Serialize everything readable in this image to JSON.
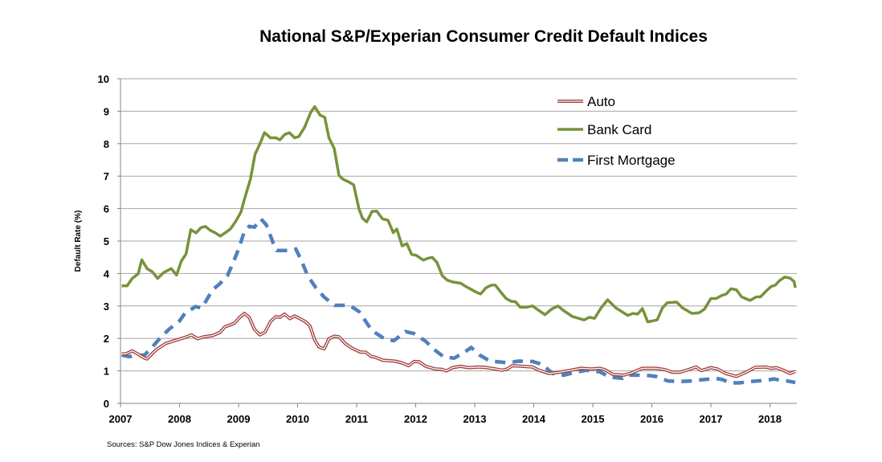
{
  "chart_data": {
    "type": "line",
    "title": "National S&P/Experian Consumer Credit Default Indices",
    "xlabel": "",
    "ylabel": "Default Rate (%)",
    "xlim": [
      2007,
      2018.45
    ],
    "ylim": [
      0,
      10
    ],
    "x_ticks": [
      "2007",
      "2008",
      "2009",
      "2010",
      "2011",
      "2012",
      "2013",
      "2014",
      "2015",
      "2016",
      "2017",
      "2018"
    ],
    "y_ticks": [
      "0",
      "1",
      "2",
      "3",
      "4",
      "5",
      "6",
      "7",
      "8",
      "9",
      "10"
    ],
    "grid": "horizontal",
    "legend_position": "top-right",
    "source": "Sources: S&P Dow Jones Indices & Experian",
    "series": [
      {
        "name": "Auto",
        "color": "#a0403c",
        "style": "double",
        "points": [
          [
            2007.02,
            1.52
          ],
          [
            2007.1,
            1.53
          ],
          [
            2007.2,
            1.62
          ],
          [
            2007.32,
            1.49
          ],
          [
            2007.41,
            1.39
          ],
          [
            2007.45,
            1.37
          ],
          [
            2007.61,
            1.66
          ],
          [
            2007.77,
            1.85
          ],
          [
            2007.95,
            1.95
          ],
          [
            2008.09,
            2.03
          ],
          [
            2008.2,
            2.11
          ],
          [
            2008.31,
            1.99
          ],
          [
            2008.41,
            2.05
          ],
          [
            2008.56,
            2.09
          ],
          [
            2008.68,
            2.18
          ],
          [
            2008.77,
            2.36
          ],
          [
            2008.93,
            2.47
          ],
          [
            2009.02,
            2.65
          ],
          [
            2009.1,
            2.77
          ],
          [
            2009.18,
            2.65
          ],
          [
            2009.27,
            2.28
          ],
          [
            2009.36,
            2.11
          ],
          [
            2009.45,
            2.2
          ],
          [
            2009.54,
            2.52
          ],
          [
            2009.63,
            2.67
          ],
          [
            2009.7,
            2.65
          ],
          [
            2009.78,
            2.75
          ],
          [
            2009.87,
            2.61
          ],
          [
            2009.95,
            2.69
          ],
          [
            2010.04,
            2.61
          ],
          [
            2010.13,
            2.52
          ],
          [
            2010.21,
            2.38
          ],
          [
            2010.29,
            1.95
          ],
          [
            2010.36,
            1.74
          ],
          [
            2010.45,
            1.68
          ],
          [
            2010.53,
            1.99
          ],
          [
            2010.62,
            2.07
          ],
          [
            2010.7,
            2.05
          ],
          [
            2010.81,
            1.84
          ],
          [
            2010.92,
            1.7
          ],
          [
            2011.06,
            1.58
          ],
          [
            2011.15,
            1.58
          ],
          [
            2011.24,
            1.45
          ],
          [
            2011.33,
            1.41
          ],
          [
            2011.44,
            1.33
          ],
          [
            2011.65,
            1.3
          ],
          [
            2011.76,
            1.25
          ],
          [
            2011.88,
            1.16
          ],
          [
            2011.97,
            1.29
          ],
          [
            2012.06,
            1.28
          ],
          [
            2012.17,
            1.14
          ],
          [
            2012.33,
            1.06
          ],
          [
            2012.44,
            1.05
          ],
          [
            2012.52,
            1.0
          ],
          [
            2012.62,
            1.1
          ],
          [
            2012.76,
            1.14
          ],
          [
            2012.89,
            1.1
          ],
          [
            2013.08,
            1.12
          ],
          [
            2013.21,
            1.1
          ],
          [
            2013.35,
            1.06
          ],
          [
            2013.46,
            1.02
          ],
          [
            2013.55,
            1.06
          ],
          [
            2013.64,
            1.16
          ],
          [
            2013.8,
            1.14
          ],
          [
            2013.98,
            1.12
          ],
          [
            2014.09,
            1.02
          ],
          [
            2014.26,
            0.92
          ],
          [
            2014.4,
            0.95
          ],
          [
            2014.57,
            1.0
          ],
          [
            2014.8,
            1.08
          ],
          [
            2014.98,
            1.06
          ],
          [
            2015.12,
            1.08
          ],
          [
            2015.2,
            1.04
          ],
          [
            2015.34,
            0.89
          ],
          [
            2015.52,
            0.87
          ],
          [
            2015.66,
            0.94
          ],
          [
            2015.84,
            1.08
          ],
          [
            2016.07,
            1.08
          ],
          [
            2016.22,
            1.04
          ],
          [
            2016.34,
            0.96
          ],
          [
            2016.48,
            0.96
          ],
          [
            2016.62,
            1.04
          ],
          [
            2016.75,
            1.12
          ],
          [
            2016.84,
            1.01
          ],
          [
            2017.0,
            1.1
          ],
          [
            2017.11,
            1.06
          ],
          [
            2017.25,
            0.92
          ],
          [
            2017.43,
            0.83
          ],
          [
            2017.61,
            0.97
          ],
          [
            2017.75,
            1.11
          ],
          [
            2017.93,
            1.12
          ],
          [
            2018.02,
            1.08
          ],
          [
            2018.11,
            1.1
          ],
          [
            2018.2,
            1.04
          ],
          [
            2018.34,
            0.92
          ],
          [
            2018.43,
            0.98
          ]
        ]
      },
      {
        "name": "Bank Card",
        "color": "#77933c",
        "style": "solid",
        "points": [
          [
            2007.02,
            3.62
          ],
          [
            2007.11,
            3.62
          ],
          [
            2007.2,
            3.85
          ],
          [
            2007.3,
            3.99
          ],
          [
            2007.36,
            4.42
          ],
          [
            2007.45,
            4.15
          ],
          [
            2007.54,
            4.05
          ],
          [
            2007.63,
            3.85
          ],
          [
            2007.73,
            4.03
          ],
          [
            2007.86,
            4.15
          ],
          [
            2007.95,
            3.95
          ],
          [
            2008.03,
            4.38
          ],
          [
            2008.11,
            4.6
          ],
          [
            2008.19,
            5.35
          ],
          [
            2008.28,
            5.25
          ],
          [
            2008.36,
            5.41
          ],
          [
            2008.44,
            5.45
          ],
          [
            2008.52,
            5.33
          ],
          [
            2008.61,
            5.25
          ],
          [
            2008.69,
            5.15
          ],
          [
            2008.77,
            5.25
          ],
          [
            2008.86,
            5.37
          ],
          [
            2008.95,
            5.6
          ],
          [
            2009.04,
            5.89
          ],
          [
            2009.11,
            6.36
          ],
          [
            2009.2,
            6.9
          ],
          [
            2009.28,
            7.68
          ],
          [
            2009.36,
            7.99
          ],
          [
            2009.44,
            8.34
          ],
          [
            2009.54,
            8.18
          ],
          [
            2009.63,
            8.18
          ],
          [
            2009.7,
            8.12
          ],
          [
            2009.78,
            8.28
          ],
          [
            2009.86,
            8.34
          ],
          [
            2009.95,
            8.18
          ],
          [
            2010.02,
            8.22
          ],
          [
            2010.12,
            8.51
          ],
          [
            2010.22,
            8.96
          ],
          [
            2010.29,
            9.14
          ],
          [
            2010.38,
            8.88
          ],
          [
            2010.46,
            8.81
          ],
          [
            2010.53,
            8.18
          ],
          [
            2010.62,
            7.85
          ],
          [
            2010.7,
            7.02
          ],
          [
            2010.77,
            6.9
          ],
          [
            2010.86,
            6.83
          ],
          [
            2010.95,
            6.73
          ],
          [
            2011.04,
            5.99
          ],
          [
            2011.1,
            5.7
          ],
          [
            2011.17,
            5.59
          ],
          [
            2011.26,
            5.91
          ],
          [
            2011.34,
            5.92
          ],
          [
            2011.44,
            5.68
          ],
          [
            2011.53,
            5.64
          ],
          [
            2011.62,
            5.26
          ],
          [
            2011.68,
            5.37
          ],
          [
            2011.77,
            4.85
          ],
          [
            2011.85,
            4.92
          ],
          [
            2011.93,
            4.59
          ],
          [
            2012.01,
            4.56
          ],
          [
            2012.13,
            4.41
          ],
          [
            2012.19,
            4.46
          ],
          [
            2012.28,
            4.5
          ],
          [
            2012.36,
            4.34
          ],
          [
            2012.45,
            3.93
          ],
          [
            2012.53,
            3.8
          ],
          [
            2012.62,
            3.74
          ],
          [
            2012.76,
            3.7
          ],
          [
            2012.85,
            3.6
          ],
          [
            2012.94,
            3.51
          ],
          [
            2013.03,
            3.42
          ],
          [
            2013.1,
            3.37
          ],
          [
            2013.19,
            3.56
          ],
          [
            2013.28,
            3.64
          ],
          [
            2013.35,
            3.64
          ],
          [
            2013.44,
            3.43
          ],
          [
            2013.53,
            3.23
          ],
          [
            2013.62,
            3.14
          ],
          [
            2013.69,
            3.13
          ],
          [
            2013.77,
            2.96
          ],
          [
            2013.87,
            2.96
          ],
          [
            2013.98,
            3.0
          ],
          [
            2014.07,
            2.88
          ],
          [
            2014.19,
            2.73
          ],
          [
            2014.3,
            2.9
          ],
          [
            2014.41,
            3.0
          ],
          [
            2014.51,
            2.85
          ],
          [
            2014.66,
            2.67
          ],
          [
            2014.85,
            2.57
          ],
          [
            2014.94,
            2.65
          ],
          [
            2015.03,
            2.62
          ],
          [
            2015.14,
            2.94
          ],
          [
            2015.25,
            3.19
          ],
          [
            2015.39,
            2.94
          ],
          [
            2015.59,
            2.71
          ],
          [
            2015.68,
            2.77
          ],
          [
            2015.76,
            2.75
          ],
          [
            2015.84,
            2.92
          ],
          [
            2015.93,
            2.51
          ],
          [
            2016.09,
            2.57
          ],
          [
            2016.18,
            2.94
          ],
          [
            2016.26,
            3.1
          ],
          [
            2016.42,
            3.12
          ],
          [
            2016.52,
            2.94
          ],
          [
            2016.68,
            2.77
          ],
          [
            2016.8,
            2.79
          ],
          [
            2016.89,
            2.9
          ],
          [
            2017.0,
            3.23
          ],
          [
            2017.09,
            3.23
          ],
          [
            2017.18,
            3.32
          ],
          [
            2017.26,
            3.37
          ],
          [
            2017.34,
            3.53
          ],
          [
            2017.43,
            3.5
          ],
          [
            2017.52,
            3.28
          ],
          [
            2017.66,
            3.17
          ],
          [
            2017.77,
            3.28
          ],
          [
            2017.84,
            3.28
          ],
          [
            2017.93,
            3.45
          ],
          [
            2018.02,
            3.6
          ],
          [
            2018.09,
            3.64
          ],
          [
            2018.16,
            3.78
          ],
          [
            2018.25,
            3.89
          ],
          [
            2018.34,
            3.86
          ],
          [
            2018.41,
            3.75
          ],
          [
            2018.43,
            3.56
          ]
        ]
      },
      {
        "name": "First Mortgage",
        "color": "#4f81bd",
        "style": "dashed",
        "points": [
          [
            2007.02,
            1.49
          ],
          [
            2007.14,
            1.44
          ],
          [
            2007.2,
            1.45
          ],
          [
            2007.41,
            1.49
          ],
          [
            2007.54,
            1.74
          ],
          [
            2007.68,
            2.03
          ],
          [
            2007.82,
            2.28
          ],
          [
            2008.0,
            2.54
          ],
          [
            2008.09,
            2.77
          ],
          [
            2008.27,
            2.98
          ],
          [
            2008.38,
            2.94
          ],
          [
            2008.56,
            3.5
          ],
          [
            2008.68,
            3.68
          ],
          [
            2008.81,
            3.93
          ],
          [
            2008.9,
            4.3
          ],
          [
            2009.0,
            4.75
          ],
          [
            2009.09,
            5.25
          ],
          [
            2009.18,
            5.45
          ],
          [
            2009.27,
            5.43
          ],
          [
            2009.38,
            5.68
          ],
          [
            2009.47,
            5.5
          ],
          [
            2009.59,
            4.92
          ],
          [
            2009.65,
            4.71
          ],
          [
            2009.86,
            4.71
          ],
          [
            2009.97,
            4.75
          ],
          [
            2010.06,
            4.42
          ],
          [
            2010.17,
            3.93
          ],
          [
            2010.31,
            3.56
          ],
          [
            2010.45,
            3.27
          ],
          [
            2010.63,
            3.02
          ],
          [
            2010.88,
            3.02
          ],
          [
            2011.04,
            2.83
          ],
          [
            2011.26,
            2.24
          ],
          [
            2011.47,
            1.99
          ],
          [
            2011.63,
            1.93
          ],
          [
            2011.83,
            2.21
          ],
          [
            2011.97,
            2.15
          ],
          [
            2012.17,
            1.91
          ],
          [
            2012.31,
            1.66
          ],
          [
            2012.47,
            1.44
          ],
          [
            2012.65,
            1.39
          ],
          [
            2012.83,
            1.58
          ],
          [
            2012.94,
            1.72
          ],
          [
            2013.08,
            1.49
          ],
          [
            2013.26,
            1.3
          ],
          [
            2013.58,
            1.25
          ],
          [
            2013.73,
            1.3
          ],
          [
            2013.98,
            1.29
          ],
          [
            2014.14,
            1.2
          ],
          [
            2014.32,
            0.92
          ],
          [
            2014.51,
            0.87
          ],
          [
            2014.71,
            0.96
          ],
          [
            2014.89,
            1.02
          ],
          [
            2015.12,
            0.97
          ],
          [
            2015.28,
            0.81
          ],
          [
            2015.5,
            0.77
          ],
          [
            2015.59,
            0.87
          ],
          [
            2015.89,
            0.87
          ],
          [
            2016.07,
            0.83
          ],
          [
            2016.27,
            0.69
          ],
          [
            2016.46,
            0.67
          ],
          [
            2016.68,
            0.69
          ],
          [
            2016.86,
            0.73
          ],
          [
            2017.09,
            0.77
          ],
          [
            2017.2,
            0.73
          ],
          [
            2017.32,
            0.63
          ],
          [
            2017.48,
            0.63
          ],
          [
            2017.66,
            0.67
          ],
          [
            2017.93,
            0.71
          ],
          [
            2018.07,
            0.75
          ],
          [
            2018.18,
            0.71
          ],
          [
            2018.29,
            0.69
          ],
          [
            2018.43,
            0.64
          ]
        ]
      }
    ]
  }
}
